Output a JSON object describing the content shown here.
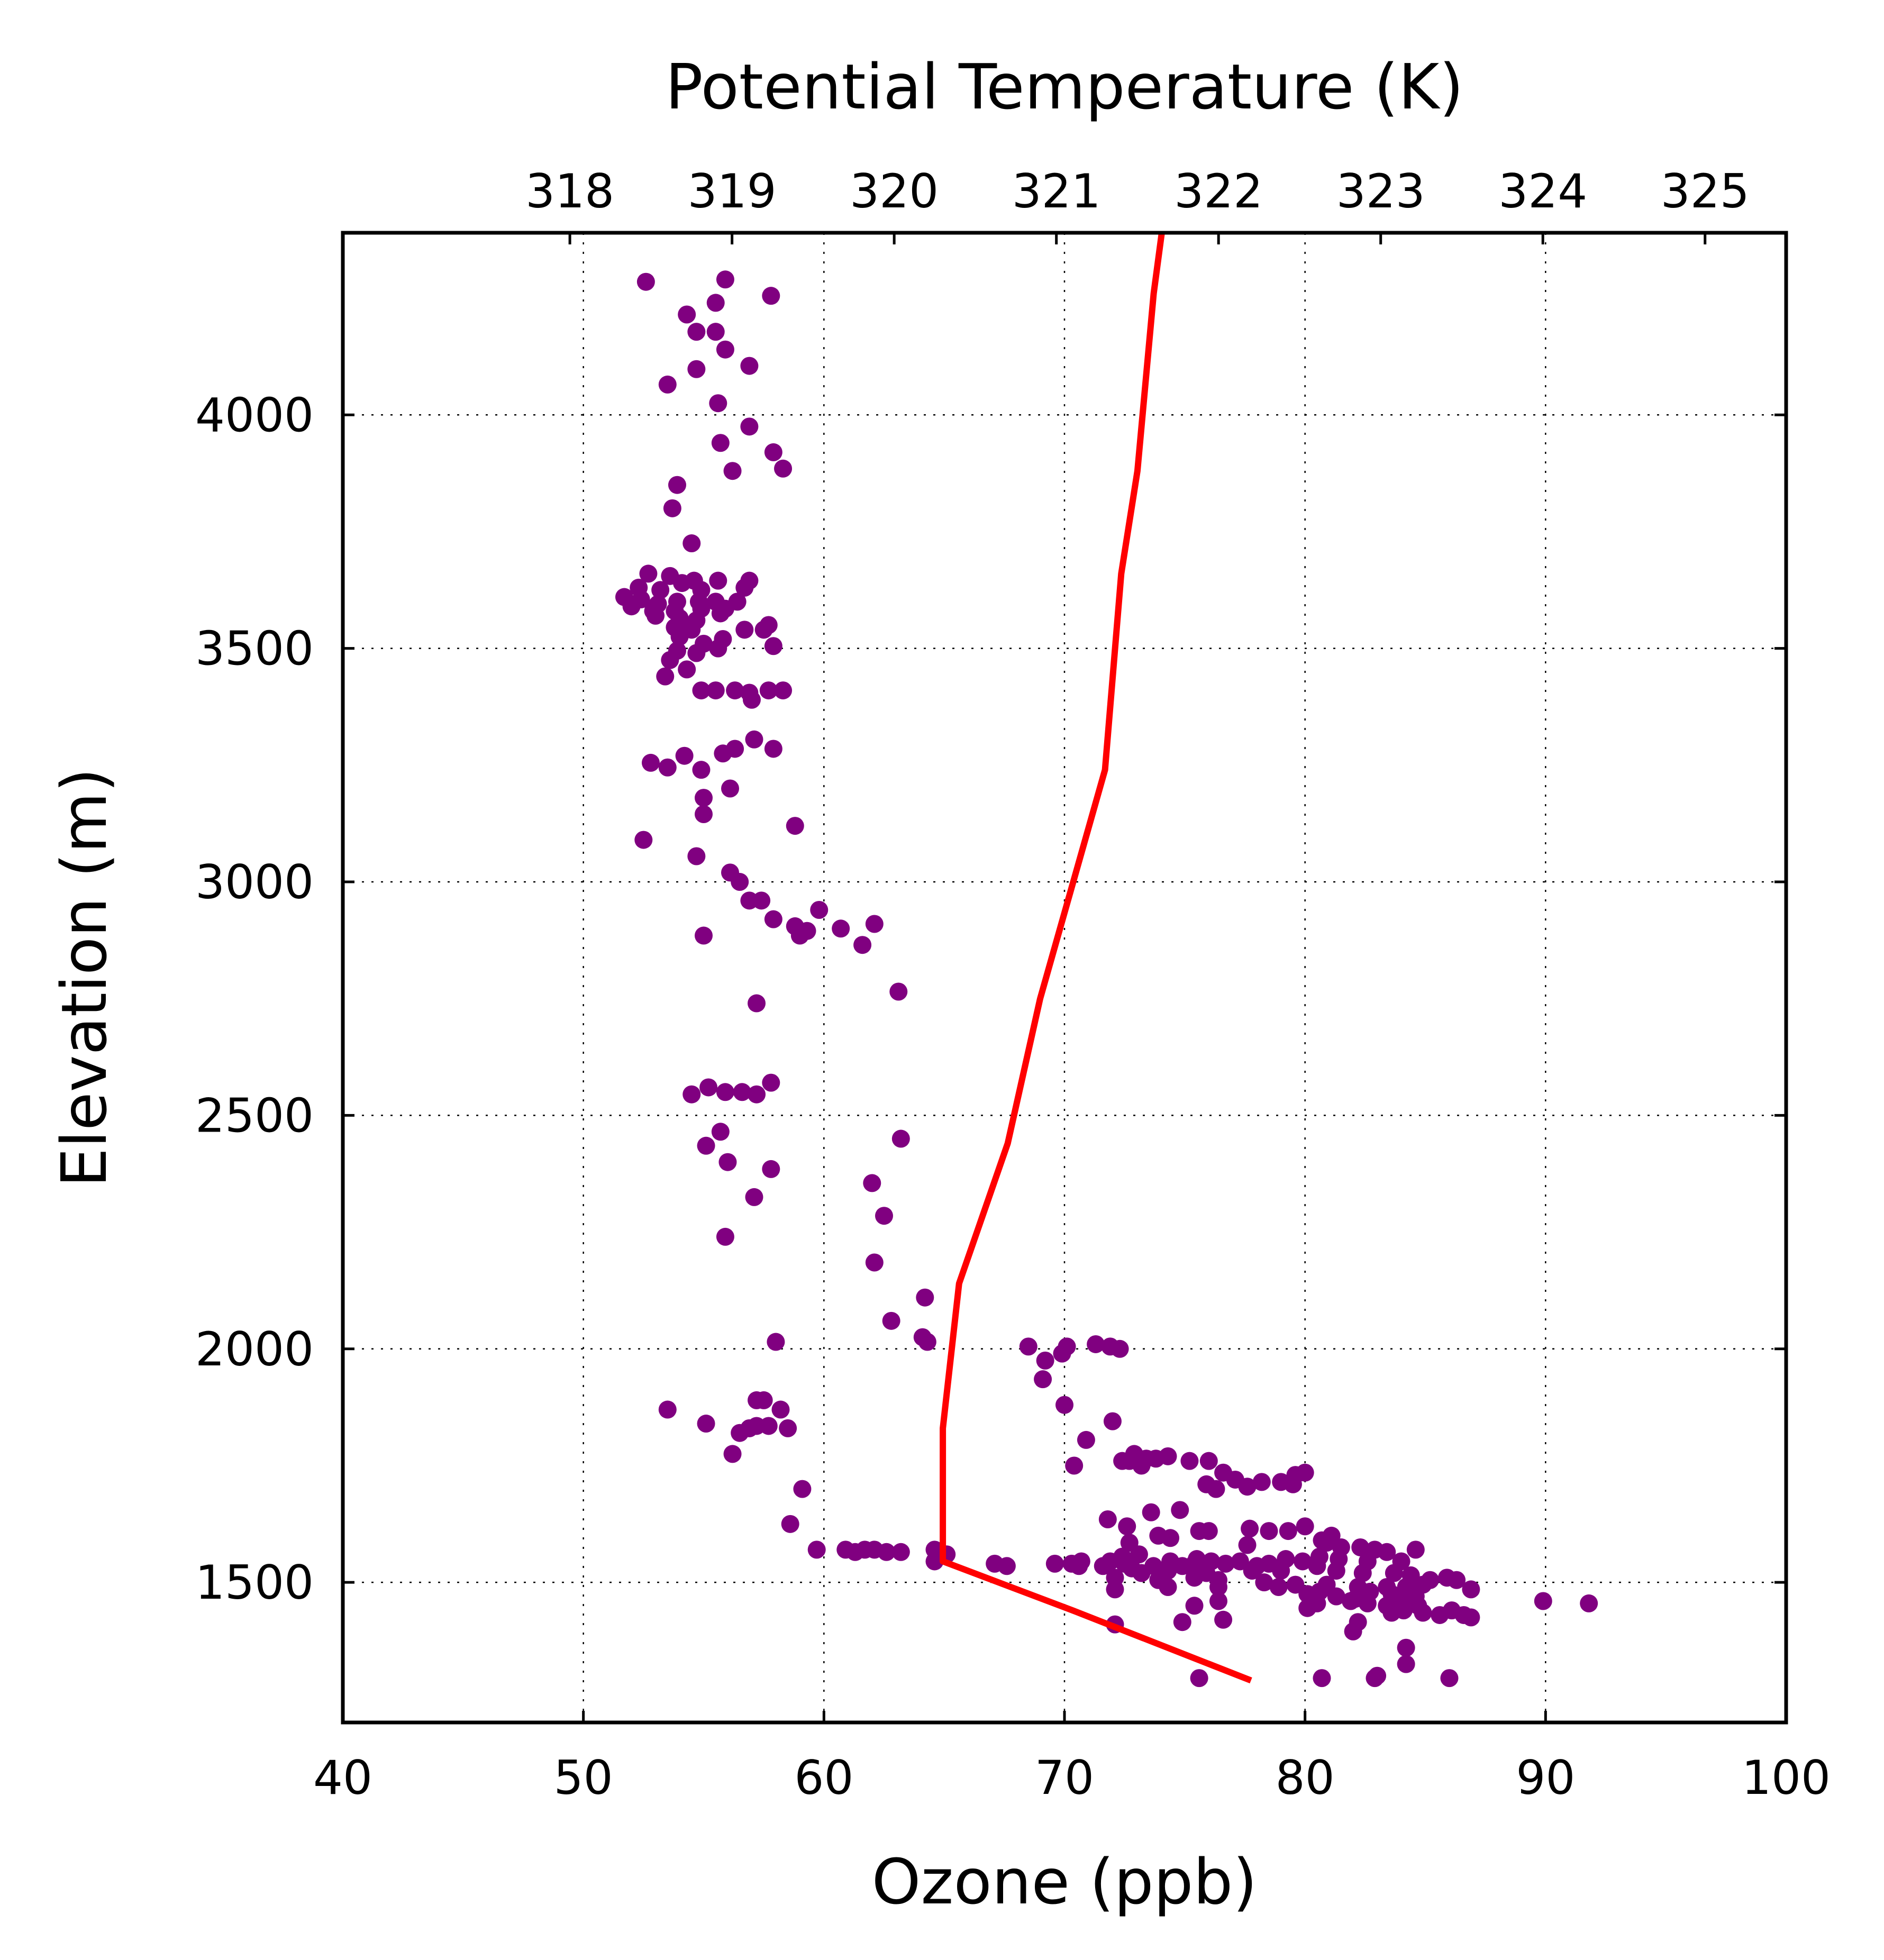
{
  "chart_data": {
    "type": "scatter",
    "xlabel": "Ozone (ppb)",
    "x2label": "Potential Temperature (K)",
    "ylabel": "Elevation (m)",
    "xlim": [
      40,
      100
    ],
    "x2lim": [
      316.6,
      325.5
    ],
    "ylim": [
      1200,
      4390
    ],
    "xticks": [
      "40",
      "50",
      "60",
      "70",
      "80",
      "90",
      "100"
    ],
    "x2ticks": [
      "318",
      "319",
      "320",
      "321",
      "322",
      "323",
      "324",
      "325"
    ],
    "yticks": [
      "1500",
      "2000",
      "2500",
      "3000",
      "3500",
      "4000"
    ],
    "grid": true,
    "colors": {
      "ozone": "#800080",
      "theta": "#ff0000"
    },
    "series": [
      {
        "kind": "scatter",
        "axis": "bottom",
        "points": [
          [
            52.6,
            4285
          ],
          [
            55.9,
            4290
          ],
          [
            57.8,
            4255
          ],
          [
            55.5,
            4240
          ],
          [
            54.7,
            4178
          ],
          [
            55.5,
            4178
          ],
          [
            54.3,
            4215
          ],
          [
            55.9,
            4140
          ],
          [
            56.9,
            4105
          ],
          [
            54.7,
            4098
          ],
          [
            53.5,
            4065
          ],
          [
            55.6,
            4025
          ],
          [
            56.9,
            3975
          ],
          [
            55.7,
            3940
          ],
          [
            57.9,
            3920
          ],
          [
            58.3,
            3885
          ],
          [
            56.2,
            3880
          ],
          [
            53.9,
            3850
          ],
          [
            53.7,
            3800
          ],
          [
            54.5,
            3725
          ],
          [
            52.7,
            3660
          ],
          [
            53.6,
            3655
          ],
          [
            54.1,
            3640
          ],
          [
            54.6,
            3645
          ],
          [
            55.6,
            3645
          ],
          [
            56.9,
            3645
          ],
          [
            52.3,
            3630
          ],
          [
            53.2,
            3625
          ],
          [
            54.9,
            3625
          ],
          [
            56.7,
            3630
          ],
          [
            51.7,
            3610
          ],
          [
            52.4,
            3605
          ],
          [
            53.1,
            3595
          ],
          [
            53.9,
            3600
          ],
          [
            54.8,
            3600
          ],
          [
            55.5,
            3600
          ],
          [
            56.4,
            3600
          ],
          [
            52.0,
            3590
          ],
          [
            52.9,
            3580
          ],
          [
            53.8,
            3580
          ],
          [
            54.9,
            3585
          ],
          [
            55.9,
            3585
          ],
          [
            53.0,
            3570
          ],
          [
            54.0,
            3565
          ],
          [
            54.7,
            3560
          ],
          [
            55.7,
            3575
          ],
          [
            53.8,
            3545
          ],
          [
            54.5,
            3540
          ],
          [
            56.7,
            3540
          ],
          [
            57.7,
            3550
          ],
          [
            57.5,
            3540
          ],
          [
            54.0,
            3525
          ],
          [
            55.0,
            3510
          ],
          [
            55.8,
            3520
          ],
          [
            57.9,
            3505
          ],
          [
            53.9,
            3495
          ],
          [
            53.6,
            3475
          ],
          [
            54.7,
            3490
          ],
          [
            55.6,
            3500
          ],
          [
            54.3,
            3455
          ],
          [
            53.4,
            3440
          ],
          [
            54.9,
            3410
          ],
          [
            55.5,
            3410
          ],
          [
            56.3,
            3410
          ],
          [
            57.0,
            3390
          ],
          [
            57.7,
            3410
          ],
          [
            58.3,
            3410
          ],
          [
            56.9,
            3405
          ],
          [
            57.1,
            3305
          ],
          [
            56.3,
            3285
          ],
          [
            55.8,
            3275
          ],
          [
            57.9,
            3285
          ],
          [
            54.2,
            3270
          ],
          [
            52.8,
            3255
          ],
          [
            53.5,
            3245
          ],
          [
            54.9,
            3240
          ],
          [
            56.1,
            3200
          ],
          [
            55.0,
            3180
          ],
          [
            55.0,
            3145
          ],
          [
            58.8,
            3120
          ],
          [
            52.5,
            3090
          ],
          [
            54.7,
            3055
          ],
          [
            56.1,
            3020
          ],
          [
            56.5,
            3000
          ],
          [
            56.9,
            2960
          ],
          [
            57.4,
            2960
          ],
          [
            57.9,
            2920
          ],
          [
            58.8,
            2905
          ],
          [
            59.3,
            2895
          ],
          [
            59.8,
            2940
          ],
          [
            60.7,
            2900
          ],
          [
            61.6,
            2865
          ],
          [
            62.1,
            2910
          ],
          [
            59.0,
            2885
          ],
          [
            55.0,
            2885
          ],
          [
            63.1,
            2765
          ],
          [
            57.2,
            2740
          ],
          [
            57.8,
            2570
          ],
          [
            55.2,
            2560
          ],
          [
            54.5,
            2545
          ],
          [
            55.9,
            2550
          ],
          [
            56.6,
            2550
          ],
          [
            57.2,
            2545
          ],
          [
            55.7,
            2465
          ],
          [
            63.2,
            2450
          ],
          [
            55.1,
            2435
          ],
          [
            56.0,
            2400
          ],
          [
            57.8,
            2385
          ],
          [
            62.0,
            2355
          ],
          [
            57.1,
            2325
          ],
          [
            62.5,
            2285
          ],
          [
            55.9,
            2240
          ],
          [
            62.1,
            2185
          ],
          [
            64.2,
            2110
          ],
          [
            62.8,
            2060
          ],
          [
            64.1,
            2025
          ],
          [
            64.3,
            2015
          ],
          [
            58.0,
            2015
          ],
          [
            68.5,
            2005
          ],
          [
            70.1,
            2005
          ],
          [
            71.3,
            2010
          ],
          [
            71.9,
            2005
          ],
          [
            72.3,
            2000
          ],
          [
            69.2,
            1975
          ],
          [
            69.9,
            1990
          ],
          [
            69.1,
            1935
          ],
          [
            57.2,
            1890
          ],
          [
            57.5,
            1890
          ],
          [
            53.5,
            1870
          ],
          [
            58.2,
            1870
          ],
          [
            70.0,
            1880
          ],
          [
            55.1,
            1840
          ],
          [
            57.2,
            1835
          ],
          [
            57.7,
            1835
          ],
          [
            58.5,
            1830
          ],
          [
            56.5,
            1820
          ],
          [
            56.9,
            1830
          ],
          [
            70.9,
            1805
          ],
          [
            72.0,
            1845
          ],
          [
            56.2,
            1775
          ],
          [
            72.4,
            1760
          ],
          [
            72.9,
            1775
          ],
          [
            73.4,
            1765
          ],
          [
            73.8,
            1765
          ],
          [
            74.3,
            1770
          ],
          [
            75.2,
            1760
          ],
          [
            73.2,
            1750
          ],
          [
            72.7,
            1760
          ],
          [
            76.0,
            1760
          ],
          [
            70.4,
            1750
          ],
          [
            76.6,
            1735
          ],
          [
            77.1,
            1720
          ],
          [
            78.2,
            1715
          ],
          [
            79.0,
            1715
          ],
          [
            79.6,
            1730
          ],
          [
            80.0,
            1735
          ],
          [
            79.5,
            1710
          ],
          [
            76.3,
            1700
          ],
          [
            75.9,
            1710
          ],
          [
            77.6,
            1705
          ],
          [
            59.1,
            1700
          ],
          [
            73.6,
            1650
          ],
          [
            74.8,
            1655
          ],
          [
            71.8,
            1635
          ],
          [
            72.6,
            1620
          ],
          [
            58.6,
            1625
          ],
          [
            75.6,
            1610
          ],
          [
            76.0,
            1610
          ],
          [
            77.7,
            1615
          ],
          [
            78.5,
            1610
          ],
          [
            79.3,
            1610
          ],
          [
            80.0,
            1620
          ],
          [
            81.1,
            1600
          ],
          [
            80.7,
            1590
          ],
          [
            80.9,
            1585
          ],
          [
            73.9,
            1600
          ],
          [
            74.4,
            1595
          ],
          [
            72.7,
            1585
          ],
          [
            77.6,
            1580
          ],
          [
            81.5,
            1575
          ],
          [
            82.3,
            1575
          ],
          [
            82.9,
            1570
          ],
          [
            83.4,
            1565
          ],
          [
            84.6,
            1570
          ],
          [
            60.9,
            1570
          ],
          [
            61.3,
            1565
          ],
          [
            62.1,
            1570
          ],
          [
            62.6,
            1565
          ],
          [
            61.7,
            1570
          ],
          [
            63.2,
            1565
          ],
          [
            64.6,
            1570
          ],
          [
            65.1,
            1560
          ],
          [
            59.7,
            1570
          ],
          [
            73.1,
            1560
          ],
          [
            72.4,
            1555
          ],
          [
            74.4,
            1545
          ],
          [
            75.5,
            1550
          ],
          [
            76.7,
            1540
          ],
          [
            78.5,
            1540
          ],
          [
            79.2,
            1550
          ],
          [
            79.9,
            1545
          ],
          [
            80.6,
            1555
          ],
          [
            81.4,
            1550
          ],
          [
            82.6,
            1545
          ],
          [
            84.0,
            1545
          ],
          [
            72.5,
            1540
          ],
          [
            74.9,
            1535
          ],
          [
            76.1,
            1545
          ],
          [
            78.0,
            1535
          ],
          [
            80.5,
            1535
          ],
          [
            71.9,
            1545
          ],
          [
            70.7,
            1545
          ],
          [
            70.3,
            1540
          ],
          [
            71.6,
            1535
          ],
          [
            72.8,
            1530
          ],
          [
            73.7,
            1535
          ],
          [
            75.4,
            1540
          ],
          [
            77.3,
            1545
          ],
          [
            69.6,
            1540
          ],
          [
            70.6,
            1535
          ],
          [
            67.6,
            1535
          ],
          [
            67.1,
            1540
          ],
          [
            64.6,
            1545
          ],
          [
            73.2,
            1520
          ],
          [
            74.3,
            1525
          ],
          [
            75.9,
            1520
          ],
          [
            77.8,
            1525
          ],
          [
            79.0,
            1525
          ],
          [
            81.3,
            1525
          ],
          [
            82.4,
            1520
          ],
          [
            83.7,
            1520
          ],
          [
            84.4,
            1515
          ],
          [
            85.2,
            1505
          ],
          [
            85.9,
            1510
          ],
          [
            86.3,
            1505
          ],
          [
            72.1,
            1510
          ],
          [
            73.9,
            1505
          ],
          [
            75.4,
            1510
          ],
          [
            76.4,
            1505
          ],
          [
            78.3,
            1500
          ],
          [
            79.6,
            1495
          ],
          [
            80.9,
            1495
          ],
          [
            82.2,
            1490
          ],
          [
            83.4,
            1490
          ],
          [
            84.2,
            1490
          ],
          [
            84.9,
            1495
          ],
          [
            86.9,
            1485
          ],
          [
            74.3,
            1490
          ],
          [
            76.4,
            1490
          ],
          [
            78.9,
            1490
          ],
          [
            80.6,
            1480
          ],
          [
            82.7,
            1480
          ],
          [
            83.6,
            1475
          ],
          [
            84.6,
            1470
          ],
          [
            72.1,
            1485
          ],
          [
            80.1,
            1475
          ],
          [
            81.3,
            1470
          ],
          [
            82.1,
            1465
          ],
          [
            83.9,
            1465
          ],
          [
            84.1,
            1460
          ],
          [
            81.9,
            1460
          ],
          [
            80.5,
            1455
          ],
          [
            80.1,
            1445
          ],
          [
            82.6,
            1455
          ],
          [
            83.4,
            1450
          ],
          [
            84.7,
            1450
          ],
          [
            76.4,
            1460
          ],
          [
            75.4,
            1450
          ],
          [
            89.9,
            1460
          ],
          [
            91.8,
            1455
          ],
          [
            84.1,
            1440
          ],
          [
            83.6,
            1435
          ],
          [
            84.9,
            1435
          ],
          [
            86.1,
            1440
          ],
          [
            86.6,
            1430
          ],
          [
            86.9,
            1425
          ],
          [
            85.6,
            1430
          ],
          [
            82.2,
            1415
          ],
          [
            82.0,
            1395
          ],
          [
            74.9,
            1415
          ],
          [
            76.6,
            1420
          ],
          [
            72.1,
            1410
          ],
          [
            84.2,
            1360
          ],
          [
            84.2,
            1325
          ],
          [
            75.6,
            1295
          ],
          [
            80.7,
            1295
          ],
          [
            82.9,
            1295
          ],
          [
            83.0,
            1300
          ],
          [
            86.0,
            1295
          ]
        ]
      },
      {
        "kind": "line",
        "axis": "top",
        "points": [
          [
            321.65,
            4390
          ],
          [
            321.6,
            4260
          ],
          [
            321.5,
            3880
          ],
          [
            321.4,
            3660
          ],
          [
            321.3,
            3240
          ],
          [
            320.9,
            2750
          ],
          [
            320.7,
            2440
          ],
          [
            320.4,
            2140
          ],
          [
            320.3,
            1830
          ],
          [
            320.3,
            1545
          ],
          [
            321.1,
            1440
          ],
          [
            322.2,
            1290
          ]
        ]
      }
    ]
  }
}
